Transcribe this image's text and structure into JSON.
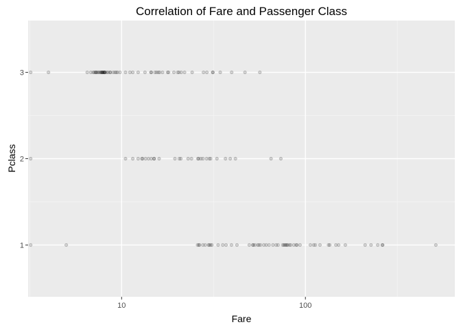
{
  "chart_data": {
    "type": "scatter",
    "title": "Correlation of Fare and Passenger Class",
    "xlabel": "Fare",
    "ylabel": "Pclass",
    "x_scale": "log10",
    "xlim": [
      3.1,
      650
    ],
    "ylim": [
      0.4,
      3.6
    ],
    "x_ticks": [
      10,
      100
    ],
    "x_tick_labels": [
      "10",
      "100"
    ],
    "y_ticks": [
      1,
      2,
      3
    ],
    "y_tick_labels": [
      "1",
      "2",
      "3"
    ],
    "grid": true,
    "legend": "none",
    "point_color": "#000000",
    "point_alpha": 0.15,
    "panel_background": "#ebebeb",
    "series": [
      {
        "y": 3,
        "x": [
          3.2,
          4,
          6.5,
          6.8,
          7,
          7.1,
          7.2,
          7.25,
          7.3,
          7.4,
          7.5,
          7.6,
          7.7,
          7.75,
          7.8,
          7.85,
          7.9,
          7.9,
          8,
          8.05,
          8.05,
          8.1,
          8.15,
          8.3,
          8.45,
          8.65,
          8.7,
          9,
          9.2,
          9.35,
          9.5,
          9.8,
          10.5,
          11.1,
          11.5,
          12.3,
          13.4,
          14.45,
          14.5,
          15.2,
          15.5,
          15.85,
          16.1,
          16.7,
          17.8,
          18,
          19.25,
          20.2,
          20.5,
          21.1,
          22,
          24.2,
          27.9,
          29.1,
          31.3,
          31.4,
          34.4,
          39.7,
          46.9,
          56.5
        ]
      },
      {
        "y": 2,
        "x": [
          3.2,
          10.5,
          11.5,
          12.3,
          12.9,
          13,
          13.5,
          14,
          14.5,
          15,
          15.05,
          16,
          19.5,
          20.6,
          21,
          23,
          24,
          26,
          26.25,
          27,
          27.7,
          29,
          30,
          30.5,
          33,
          36.75,
          39,
          41.6,
          65,
          73.5
        ]
      },
      {
        "y": 1,
        "x": [
          3.2,
          5,
          25.9,
          26.3,
          26.55,
          27.7,
          28.5,
          29.7,
          30,
          30.5,
          31,
          33.5,
          35.5,
          37,
          39.6,
          42.4,
          49.5,
          51.8,
          52,
          53.1,
          55,
          55.9,
          57,
          59.4,
          61.2,
          63.4,
          66.6,
          69.3,
          71,
          75.2,
          76.3,
          77.3,
          78.3,
          79.2,
          80,
          81.9,
          83.2,
          86.5,
          89.1,
          90,
          93.5,
          106.4,
          110.9,
          113.3,
          120,
          133.65,
          135.6,
          146.5,
          151.55,
          164.9,
          211.3,
          227.5,
          247.5,
          262.4,
          263,
          512.3
        ]
      }
    ]
  }
}
